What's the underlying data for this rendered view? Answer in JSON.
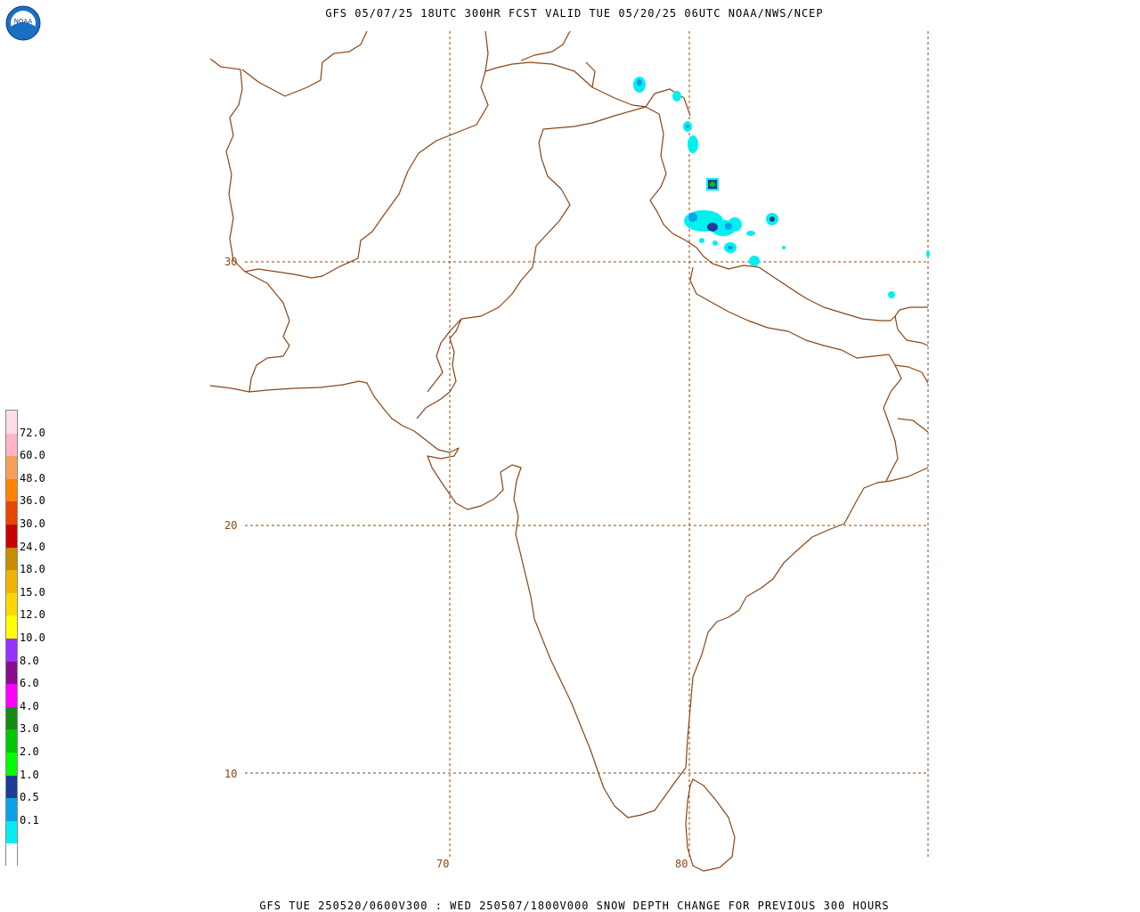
{
  "header": {
    "title": "GFS 05/07/25 18UTC 300HR FCST VALID TUE 05/20/25 06UTC NOAA/NWS/NCEP"
  },
  "footer": {
    "title": "GFS TUE 250520/0600V300 : WED 250507/1800V000 SNOW DEPTH CHANGE FOR PREVIOUS 300 HOURS"
  },
  "logo": {
    "text": "NOAA"
  },
  "map": {
    "lat_labels": [
      "30",
      "20",
      "10"
    ],
    "lon_labels": [
      "70",
      "80"
    ]
  },
  "legend": {
    "levels": [
      {
        "label": "",
        "color": "#ffffff"
      },
      {
        "label": "0.1",
        "color": "#00f0f0"
      },
      {
        "label": "0.5",
        "color": "#0aa0e6"
      },
      {
        "label": "1.0",
        "color": "#1e3c96"
      },
      {
        "label": "2.0",
        "color": "#00ff00"
      },
      {
        "label": "3.0",
        "color": "#00c800"
      },
      {
        "label": "4.0",
        "color": "#148c14"
      },
      {
        "label": "6.0",
        "color": "#ff00ff"
      },
      {
        "label": "8.0",
        "color": "#8c0a8c"
      },
      {
        "label": "10.0",
        "color": "#9632ff"
      },
      {
        "label": "12.0",
        "color": "#ffff00"
      },
      {
        "label": "15.0",
        "color": "#ffd700"
      },
      {
        "label": "18.0",
        "color": "#f0b400"
      },
      {
        "label": "24.0",
        "color": "#c88c00"
      },
      {
        "label": "30.0",
        "color": "#c80000"
      },
      {
        "label": "36.0",
        "color": "#e64600"
      },
      {
        "label": "48.0",
        "color": "#ff8200"
      },
      {
        "label": "60.0",
        "color": "#f5a05a"
      },
      {
        "label": "72.0",
        "color": "#ffb4c8"
      },
      {
        "label": "",
        "color": "#ffdce6"
      }
    ]
  },
  "colors": {
    "boundary": "#8b4513",
    "snow_light": "#00f0f0",
    "snow_mid": "#0aa0e6",
    "snow_heavy": "#1e3c96",
    "snow_green": "#00c800"
  }
}
